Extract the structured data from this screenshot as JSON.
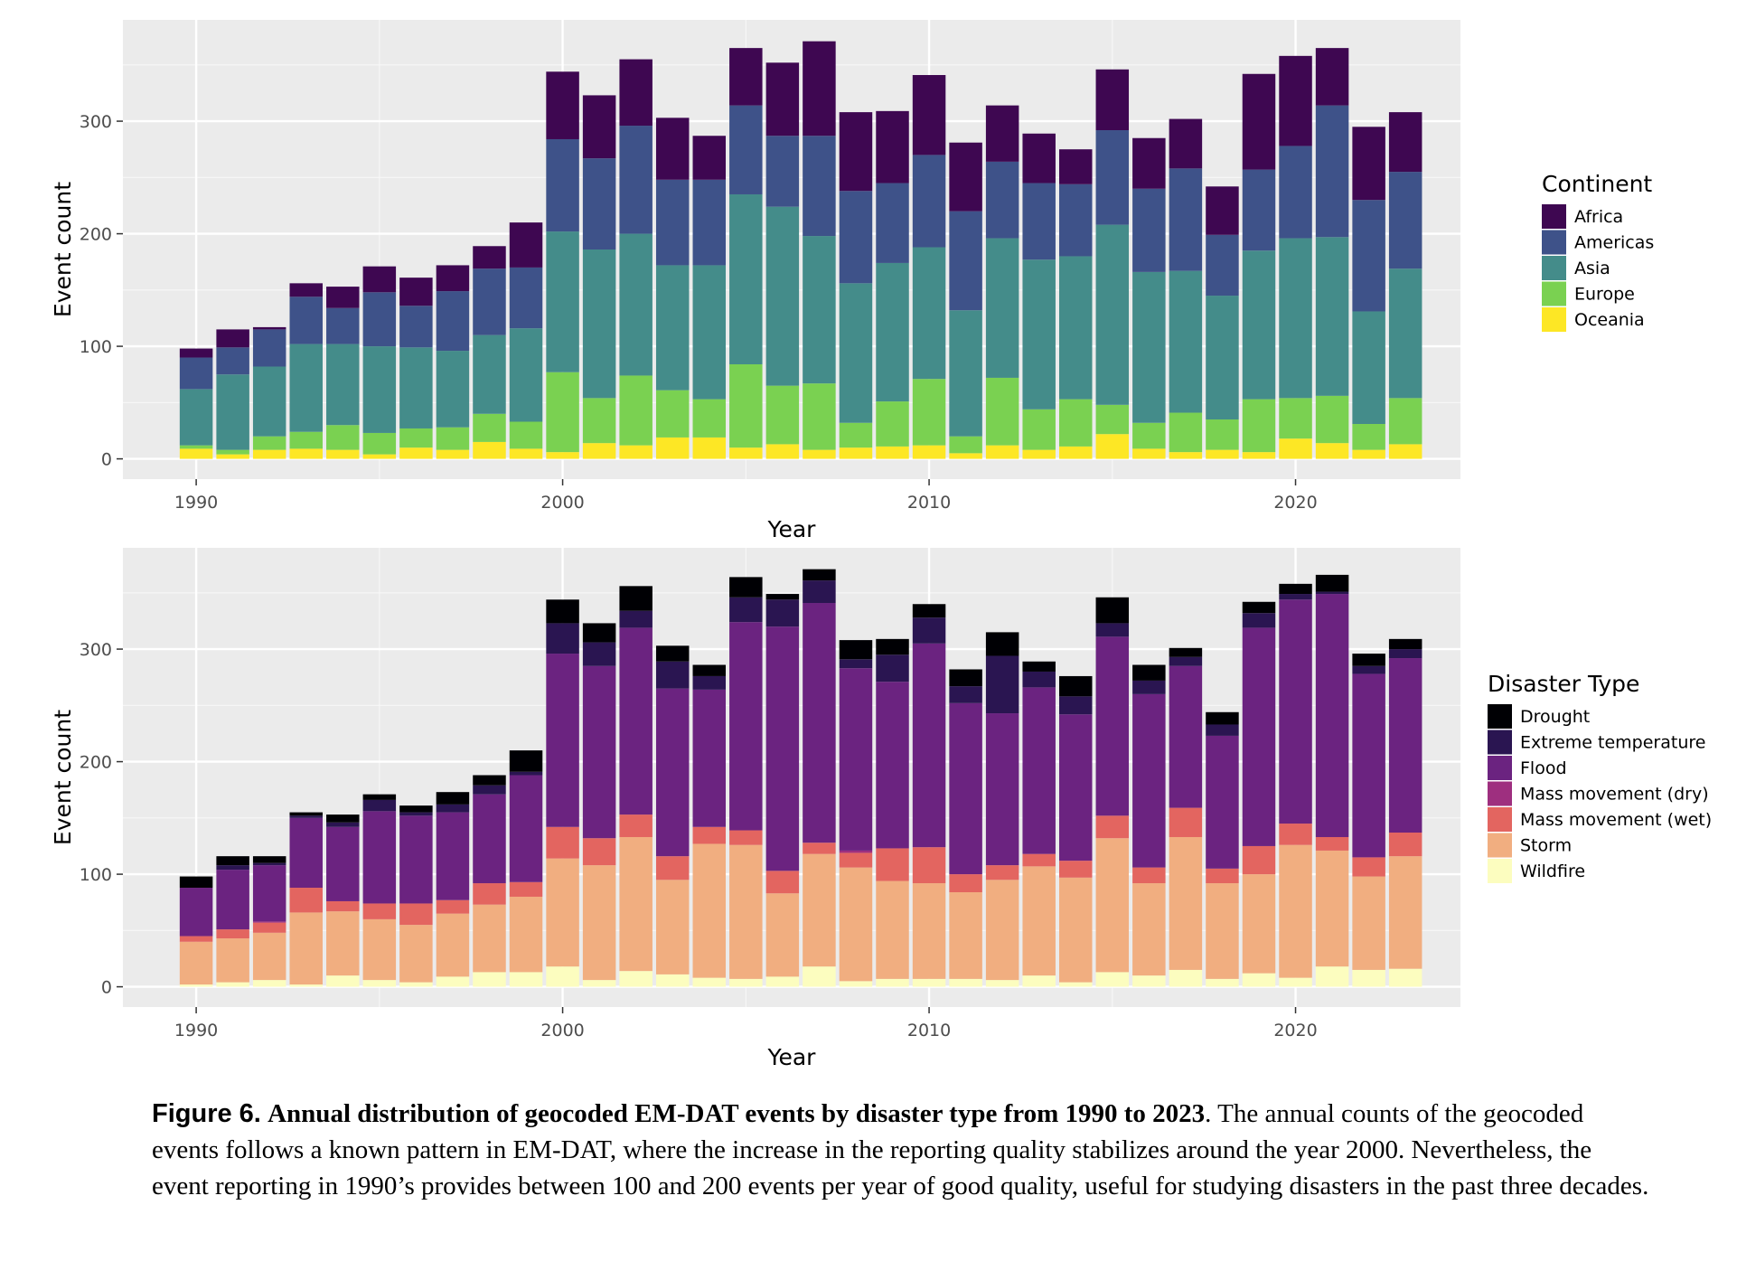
{
  "chart_data": [
    {
      "type": "bar",
      "stacked": true,
      "xlabel": "Year",
      "ylabel": "Event count",
      "xlim": [
        1988,
        2024.5
      ],
      "ylim": [
        -18,
        390
      ],
      "x_ticks": [
        1990,
        2000,
        2010,
        2020
      ],
      "y_ticks": [
        0,
        100,
        200,
        300
      ],
      "grid": true,
      "legend_title": "Continent",
      "legend_position": "right",
      "categories": [
        1990,
        1991,
        1992,
        1993,
        1994,
        1995,
        1996,
        1997,
        1998,
        1999,
        2000,
        2001,
        2002,
        2003,
        2004,
        2005,
        2006,
        2007,
        2008,
        2009,
        2010,
        2011,
        2012,
        2013,
        2014,
        2015,
        2016,
        2017,
        2018,
        2019,
        2020,
        2021,
        2022,
        2023
      ],
      "series": [
        {
          "name": "Oceania",
          "color": "#fde725",
          "values": [
            9,
            4,
            8,
            9,
            8,
            4,
            10,
            8,
            15,
            9,
            6,
            14,
            12,
            19,
            19,
            10,
            13,
            8,
            10,
            11,
            12,
            5,
            12,
            8,
            11,
            22,
            9,
            6,
            8,
            6,
            18,
            14,
            8,
            13
          ]
        },
        {
          "name": "Europe",
          "color": "#7ad151",
          "values": [
            3,
            4,
            12,
            15,
            22,
            19,
            17,
            20,
            25,
            24,
            71,
            40,
            62,
            42,
            34,
            74,
            52,
            59,
            22,
            40,
            59,
            15,
            60,
            36,
            42,
            26,
            23,
            35,
            27,
            47,
            36,
            42,
            23,
            41
          ]
        },
        {
          "name": "Asia",
          "color": "#448c8a",
          "values": [
            50,
            67,
            62,
            78,
            72,
            77,
            72,
            68,
            70,
            83,
            125,
            132,
            126,
            111,
            119,
            151,
            159,
            131,
            124,
            123,
            117,
            112,
            124,
            133,
            127,
            160,
            134,
            126,
            110,
            132,
            142,
            141,
            100,
            115
          ]
        },
        {
          "name": "Americas",
          "color": "#3e5289",
          "values": [
            28,
            24,
            33,
            42,
            32,
            48,
            37,
            53,
            59,
            54,
            82,
            81,
            96,
            76,
            76,
            79,
            63,
            89,
            82,
            71,
            82,
            88,
            68,
            68,
            64,
            84,
            74,
            91,
            54,
            72,
            82,
            117,
            99,
            86
          ]
        },
        {
          "name": "Africa",
          "color": "#3e0751",
          "values": [
            8,
            16,
            2,
            12,
            19,
            23,
            25,
            23,
            20,
            40,
            60,
            56,
            59,
            55,
            39,
            51,
            65,
            84,
            70,
            64,
            71,
            61,
            50,
            44,
            31,
            54,
            45,
            44,
            43,
            85,
            80,
            51,
            65,
            53
          ]
        }
      ]
    },
    {
      "type": "bar",
      "stacked": true,
      "xlabel": "Year",
      "ylabel": "Event count",
      "xlim": [
        1988,
        2024.5
      ],
      "ylim": [
        -18,
        390
      ],
      "x_ticks": [
        1990,
        2000,
        2010,
        2020
      ],
      "y_ticks": [
        0,
        100,
        200,
        300
      ],
      "grid": true,
      "legend_title": "Disaster Type",
      "legend_position": "right",
      "categories": [
        1990,
        1991,
        1992,
        1993,
        1994,
        1995,
        1996,
        1997,
        1998,
        1999,
        2000,
        2001,
        2002,
        2003,
        2004,
        2005,
        2006,
        2007,
        2008,
        2009,
        2010,
        2011,
        2012,
        2013,
        2014,
        2015,
        2016,
        2017,
        2018,
        2019,
        2020,
        2021,
        2022,
        2023
      ],
      "series": [
        {
          "name": "Wildfire",
          "color": "#fcfdbf",
          "values": [
            2,
            4,
            6,
            2,
            10,
            6,
            4,
            9,
            13,
            13,
            18,
            6,
            14,
            11,
            8,
            7,
            9,
            18,
            5,
            7,
            7,
            7,
            6,
            10,
            4,
            13,
            10,
            15,
            7,
            12,
            8,
            18,
            15,
            16
          ]
        },
        {
          "name": "Storm",
          "color": "#f1ae80",
          "values": [
            38,
            39,
            42,
            64,
            57,
            54,
            51,
            56,
            60,
            67,
            96,
            102,
            119,
            84,
            119,
            119,
            74,
            100,
            101,
            87,
            85,
            77,
            89,
            97,
            93,
            119,
            82,
            118,
            85,
            88,
            118,
            103,
            83,
            100
          ]
        },
        {
          "name": "Mass movement (wet)",
          "color": "#e36560",
          "values": [
            5,
            8,
            9,
            22,
            9,
            14,
            19,
            12,
            19,
            13,
            28,
            24,
            20,
            21,
            15,
            13,
            20,
            10,
            13,
            29,
            32,
            16,
            13,
            11,
            15,
            20,
            14,
            26,
            13,
            25,
            19,
            12,
            17,
            21
          ]
        },
        {
          "name": "Mass movement (dry)",
          "color": "#9e2f7f",
          "values": [
            0,
            0,
            1,
            0,
            0,
            0,
            0,
            0,
            0,
            0,
            0,
            0,
            0,
            0,
            0,
            0,
            0,
            0,
            2,
            0,
            0,
            0,
            0,
            0,
            0,
            0,
            0,
            0,
            0,
            0,
            0,
            0,
            0,
            0
          ]
        },
        {
          "name": "Flood",
          "color": "#6b2380",
          "values": [
            43,
            53,
            50,
            62,
            66,
            82,
            78,
            78,
            79,
            95,
            154,
            153,
            166,
            149,
            122,
            185,
            217,
            213,
            162,
            148,
            181,
            152,
            135,
            148,
            130,
            159,
            154,
            126,
            118,
            194,
            199,
            216,
            163,
            155
          ]
        },
        {
          "name": "Extreme temperature",
          "color": "#2a1551",
          "values": [
            0,
            4,
            2,
            2,
            4,
            10,
            3,
            7,
            8,
            3,
            27,
            21,
            15,
            24,
            12,
            22,
            24,
            20,
            8,
            24,
            23,
            15,
            51,
            14,
            16,
            12,
            12,
            8,
            10,
            13,
            5,
            2,
            7,
            8
          ]
        },
        {
          "name": "Drought",
          "color": "#000004",
          "values": [
            10,
            8,
            6,
            3,
            7,
            5,
            6,
            11,
            9,
            19,
            21,
            17,
            22,
            14,
            10,
            18,
            5,
            10,
            17,
            14,
            12,
            15,
            21,
            9,
            18,
            23,
            14,
            8,
            11,
            10,
            9,
            15,
            11,
            9
          ]
        }
      ]
    }
  ],
  "caption": {
    "label": "Figure 6.",
    "title": "Annual distribution of geocoded EM-DAT events by disaster type from 1990 to 2023",
    "text": ". The annual counts of the geocoded events follows a known pattern in EM-DAT, where the increase in the reporting quality stabilizes around the year 2000. Nevertheless, the event reporting in 1990’s provides between 100 and 200 events per year of good quality, useful for studying disasters in the past three decades."
  }
}
